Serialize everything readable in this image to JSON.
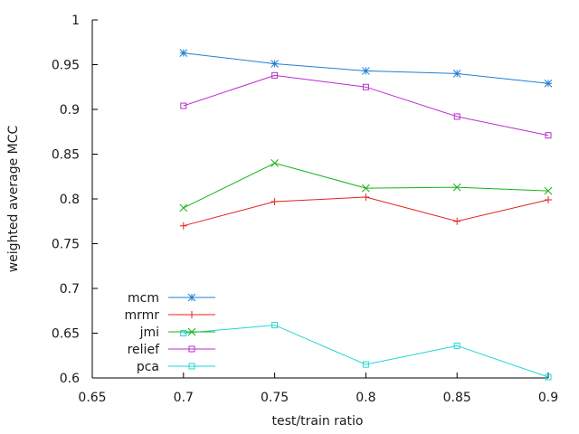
{
  "chart_data": {
    "type": "line",
    "title": "",
    "xlabel": "test/train ratio",
    "ylabel": "weighted average MCC",
    "xlim": [
      0.65,
      0.9
    ],
    "ylim": [
      0.6,
      1.0
    ],
    "xticks": [
      0.65,
      0.7,
      0.75,
      0.8,
      0.85,
      0.9
    ],
    "xtick_labels": [
      "0.65",
      "0.7",
      "0.75",
      "0.8",
      "0.85",
      "0.9"
    ],
    "yticks": [
      0.6,
      0.65,
      0.7,
      0.75,
      0.8,
      0.85,
      0.9,
      0.95,
      1.0
    ],
    "ytick_labels": [
      "0.6",
      "0.65",
      "0.7",
      "0.75",
      "0.8",
      "0.85",
      "0.9",
      "0.95",
      "1"
    ],
    "grid": false,
    "legend_position": "bottom-left",
    "x": [
      0.7,
      0.75,
      0.8,
      0.85,
      0.9
    ],
    "series": [
      {
        "name": "mcm",
        "color": "#1f7fd4",
        "marker": "star",
        "values": [
          0.963,
          0.951,
          0.943,
          0.94,
          0.929
        ]
      },
      {
        "name": "mrmr",
        "color": "#e0231f",
        "marker": "plus",
        "values": [
          0.77,
          0.797,
          0.802,
          0.775,
          0.799
        ]
      },
      {
        "name": "jmi",
        "color": "#17b317",
        "marker": "cross",
        "values": [
          0.79,
          0.84,
          0.812,
          0.813,
          0.809
        ]
      },
      {
        "name": "relief",
        "color": "#b82ecc",
        "marker": "square",
        "values": [
          0.904,
          0.938,
          0.925,
          0.892,
          0.871
        ]
      },
      {
        "name": "pca",
        "color": "#22d6d6",
        "marker": "square",
        "values": [
          0.65,
          0.659,
          0.615,
          0.636,
          0.601
        ]
      }
    ]
  }
}
